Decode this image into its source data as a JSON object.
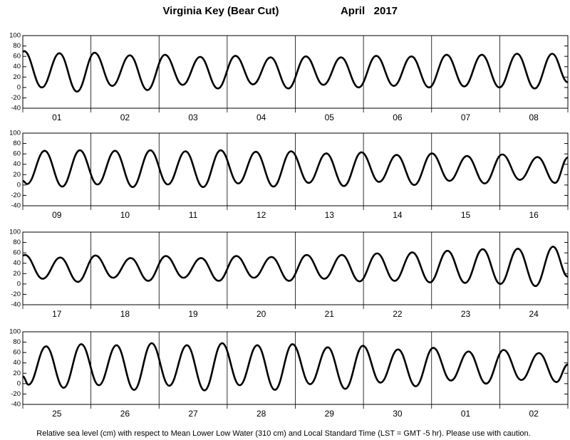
{
  "title": "Virginia Key (Bear Cut)",
  "date": "April   2017",
  "footnote": "Relative sea level (cm) with respect to Mean Lower Low Water (310 cm) and Local Standard Time (LST = GMT -5 hr). Please use with caution.",
  "chart_data": [
    {
      "type": "line",
      "color": "#000000",
      "categories": [
        "01",
        "02",
        "03",
        "04",
        "05",
        "06",
        "07",
        "08"
      ],
      "x": [
        0,
        0.5,
        6.7,
        12.9,
        19.1,
        25.3,
        31.5,
        37.7,
        43.9,
        50.1,
        56.3,
        62.5,
        68.7,
        74.9,
        81.1,
        87.3,
        93.5,
        99.7,
        105.9,
        112.1,
        118.3,
        124.5,
        130.7,
        136.9,
        143.1,
        149.3,
        155.5,
        161.7,
        167.9,
        174.1,
        180.3,
        186.5,
        192
      ],
      "values": [
        69,
        70,
        0,
        66,
        -8,
        67,
        3,
        62,
        -5,
        63,
        5,
        59,
        -2,
        61,
        6,
        58,
        -2,
        60,
        5,
        58,
        0,
        61,
        3,
        60,
        0,
        63,
        2,
        63,
        0,
        65,
        -2,
        65,
        10
      ],
      "xlim": [
        0,
        192
      ],
      "xticks": [
        0,
        24,
        48,
        72,
        96,
        120,
        144,
        168,
        192
      ],
      "ylim": [
        -40,
        100
      ],
      "yticks": [
        -40,
        -20,
        0,
        20,
        40,
        60,
        80,
        100
      ]
    },
    {
      "type": "line",
      "color": "#000000",
      "categories": [
        "09",
        "10",
        "11",
        "12",
        "13",
        "14",
        "15",
        "16"
      ],
      "x": [
        0,
        1.5,
        7.7,
        13.9,
        20.1,
        26.3,
        32.5,
        38.7,
        44.9,
        51.1,
        57.3,
        63.5,
        69.7,
        75.9,
        82.1,
        88.3,
        94.5,
        100.7,
        106.9,
        113.1,
        119.3,
        125.5,
        131.7,
        137.9,
        144.1,
        150.3,
        156.5,
        162.7,
        168.9,
        175.1,
        181.3,
        187.5,
        192
      ],
      "values": [
        8,
        2,
        66,
        -3,
        67,
        1,
        66,
        -4,
        67,
        1,
        65,
        -4,
        67,
        3,
        64,
        -3,
        65,
        4,
        61,
        -2,
        63,
        6,
        58,
        0,
        61,
        8,
        56,
        3,
        59,
        10,
        54,
        4,
        53
      ],
      "xlim": [
        0,
        192
      ],
      "xticks": [
        0,
        24,
        48,
        72,
        96,
        120,
        144,
        168,
        192
      ],
      "ylim": [
        -40,
        100
      ],
      "yticks": [
        -40,
        -20,
        0,
        20,
        40,
        60,
        80,
        100
      ]
    },
    {
      "type": "line",
      "color": "#000000",
      "categories": [
        "17",
        "18",
        "19",
        "20",
        "21",
        "22",
        "23",
        "24"
      ],
      "x": [
        0,
        0.8,
        7.0,
        13.2,
        19.4,
        25.6,
        31.8,
        38.0,
        44.2,
        50.4,
        56.6,
        62.8,
        69.0,
        75.2,
        81.4,
        87.6,
        93.8,
        100.0,
        106.2,
        112.4,
        118.6,
        124.8,
        131.0,
        137.2,
        143.4,
        149.6,
        155.8,
        162.0,
        168.2,
        174.4,
        180.6,
        186.8,
        192
      ],
      "values": [
        55,
        56,
        10,
        51,
        4,
        55,
        12,
        50,
        6,
        54,
        12,
        50,
        6,
        54,
        12,
        52,
        6,
        56,
        10,
        56,
        5,
        59,
        6,
        61,
        3,
        64,
        2,
        67,
        0,
        68,
        -4,
        72,
        14
      ],
      "xlim": [
        0,
        192
      ],
      "xticks": [
        0,
        24,
        48,
        72,
        96,
        120,
        144,
        168,
        192
      ],
      "ylim": [
        -40,
        100
      ],
      "yticks": [
        -40,
        -20,
        0,
        20,
        40,
        60,
        80,
        100
      ]
    },
    {
      "type": "line",
      "color": "#000000",
      "categories": [
        "25",
        "26",
        "27",
        "28",
        "29",
        "30",
        "01",
        "02"
      ],
      "x": [
        0,
        2,
        8.2,
        14.4,
        20.6,
        26.8,
        33,
        39.2,
        45.4,
        51.6,
        57.8,
        64,
        70.2,
        76.4,
        82.6,
        88.8,
        95,
        101.2,
        107.4,
        113.6,
        119.8,
        126,
        132.2,
        138.4,
        144.6,
        150.8,
        157,
        163.2,
        169.4,
        175.6,
        181.8,
        188,
        192
      ],
      "values": [
        14,
        -2,
        72,
        -8,
        76,
        -3,
        74,
        -12,
        78,
        -4,
        74,
        -13,
        78,
        -3,
        74,
        -12,
        76,
        -1,
        70,
        -10,
        73,
        2,
        66,
        -5,
        69,
        6,
        62,
        0,
        65,
        7,
        59,
        3,
        37
      ],
      "xlim": [
        0,
        192
      ],
      "xticks": [
        0,
        24,
        48,
        72,
        96,
        120,
        144,
        168,
        192
      ],
      "ylim": [
        -40,
        100
      ],
      "yticks": [
        -40,
        -20,
        0,
        20,
        40,
        60,
        80,
        100
      ]
    }
  ]
}
